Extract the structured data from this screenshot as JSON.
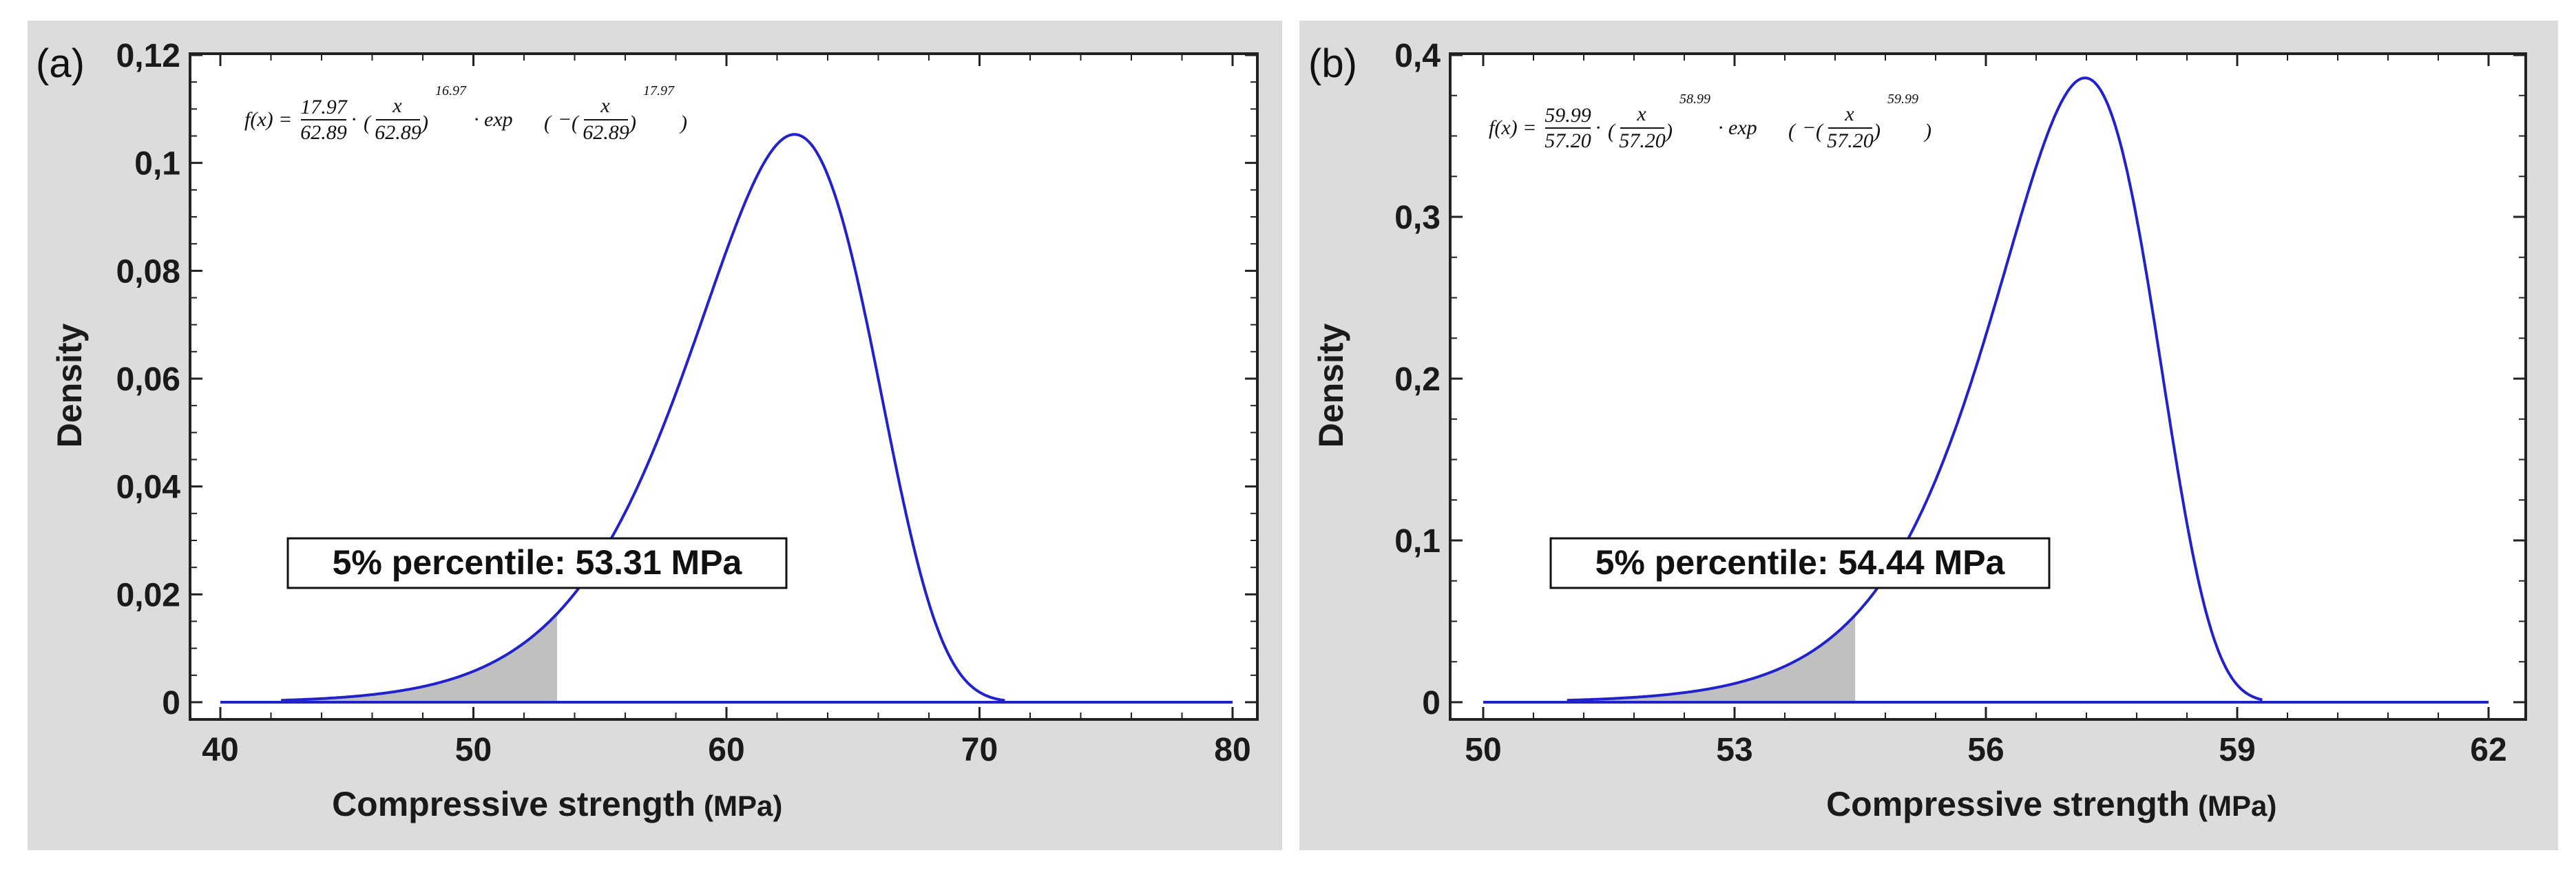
{
  "chart_data": [
    {
      "type": "line",
      "panel_label": "(a)",
      "title": "",
      "xlabel": "Compressive strength",
      "xunit": "(MPa)",
      "ylabel": "Density",
      "xlim": [
        40,
        80
      ],
      "ylim": [
        0,
        0.12
      ],
      "x_ticks": [
        40,
        50,
        60,
        70,
        80
      ],
      "x_tick_labels": [
        "40",
        "50",
        "60",
        "70",
        "80"
      ],
      "y_ticks": [
        0,
        0.02,
        0.04,
        0.06,
        0.08,
        0.1,
        0.12
      ],
      "y_tick_labels": [
        "0",
        "0,02",
        "0,04",
        "0,06",
        "0,08",
        "0,1",
        "0,12"
      ],
      "distribution": "weibull",
      "shape": 17.97,
      "scale": 62.89,
      "curve_x_range": [
        42.4,
        71.0
      ],
      "baseline_x_range": [
        40,
        80
      ],
      "shaded_until": 53.31,
      "annotation": "5% percentile: 53.31 MPa",
      "formula": {
        "lhs": "f(x) =",
        "coef_num": "17.97",
        "coef_den": "62.89",
        "x_num": "x",
        "x_den": "62.89",
        "exp1": "16.97",
        "mid": "· exp",
        "exp2": "17.97"
      },
      "colors": {
        "curve": "#2222cc",
        "shade": "#c0c0c0",
        "panel_bg": "#dcdcdc"
      }
    },
    {
      "type": "line",
      "panel_label": "(b)",
      "title": "",
      "xlabel": "Compressive strength",
      "xunit": "(MPa)",
      "ylabel": "Density",
      "xlim": [
        50,
        62
      ],
      "ylim": [
        0,
        0.4
      ],
      "x_ticks": [
        50,
        53,
        56,
        59,
        62
      ],
      "x_tick_labels": [
        "50",
        "53",
        "56",
        "59",
        "62"
      ],
      "y_ticks": [
        0,
        0.1,
        0.2,
        0.3,
        0.4
      ],
      "y_tick_labels": [
        "0",
        "0,1",
        "0,2",
        "0,3",
        "0,4"
      ],
      "distribution": "weibull",
      "shape": 59.99,
      "scale": 57.2,
      "curve_x_range": [
        51.0,
        59.3
      ],
      "baseline_x_range": [
        50,
        62
      ],
      "shaded_until": 54.44,
      "annotation": "5% percentile: 54.44 MPa",
      "formula": {
        "lhs": "f(x) =",
        "coef_num": "59.99",
        "coef_den": "57.20",
        "x_num": "x",
        "x_den": "57.20",
        "exp1": "58.99",
        "mid": "· exp",
        "exp2": "59.99"
      },
      "colors": {
        "curve": "#2222cc",
        "shade": "#c0c0c0",
        "panel_bg": "#dcdcdc"
      }
    }
  ]
}
